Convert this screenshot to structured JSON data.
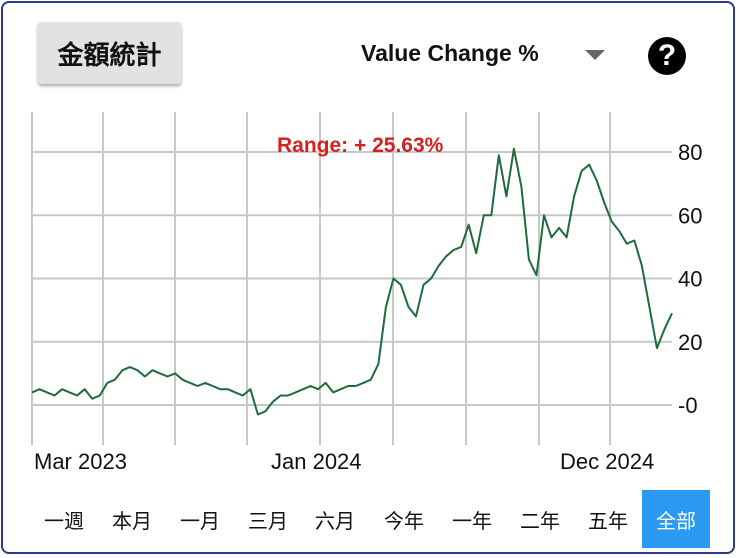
{
  "header": {
    "stats_button": "金額統計",
    "metric_selector": "Value Change %",
    "help_symbol": "?"
  },
  "chart_data": {
    "type": "line",
    "annotation": "Range: + 25.63%",
    "x_tick_labels": [
      "Mar 2023",
      "Jan 2024",
      "Dec 2024"
    ],
    "y_ticks": [
      "80",
      "60",
      "40",
      "20",
      "-0"
    ],
    "ylim": [
      -8,
      92
    ],
    "grid": true,
    "line_color": "#1f6b3a",
    "annotation_color": "#d32020",
    "series": [
      {
        "values": [
          4,
          5,
          4,
          3,
          5,
          4,
          3,
          5,
          2,
          3,
          7,
          8,
          11,
          12,
          11,
          9,
          11,
          10,
          9,
          10,
          8,
          7,
          6,
          7,
          6,
          5,
          5,
          4,
          3,
          5,
          -3,
          -2,
          1,
          3,
          3,
          4,
          5,
          6,
          5,
          7,
          4,
          5,
          6,
          6,
          7,
          8,
          13,
          31,
          40,
          38,
          31,
          28,
          38,
          40,
          44,
          47,
          49,
          50,
          57,
          48,
          60,
          60,
          79,
          66,
          81,
          69,
          46,
          41,
          60,
          53,
          56,
          53,
          66,
          74,
          76,
          71,
          64,
          58,
          55,
          51,
          52,
          44,
          31,
          18,
          24,
          29
        ]
      }
    ]
  },
  "range_buttons": [
    {
      "label": "一週",
      "active": false
    },
    {
      "label": "本月",
      "active": false
    },
    {
      "label": "一月",
      "active": false
    },
    {
      "label": "三月",
      "active": false
    },
    {
      "label": "六月",
      "active": false
    },
    {
      "label": "今年",
      "active": false
    },
    {
      "label": "一年",
      "active": false
    },
    {
      "label": "二年",
      "active": false
    },
    {
      "label": "五年",
      "active": false
    },
    {
      "label": "全部",
      "active": true
    }
  ]
}
